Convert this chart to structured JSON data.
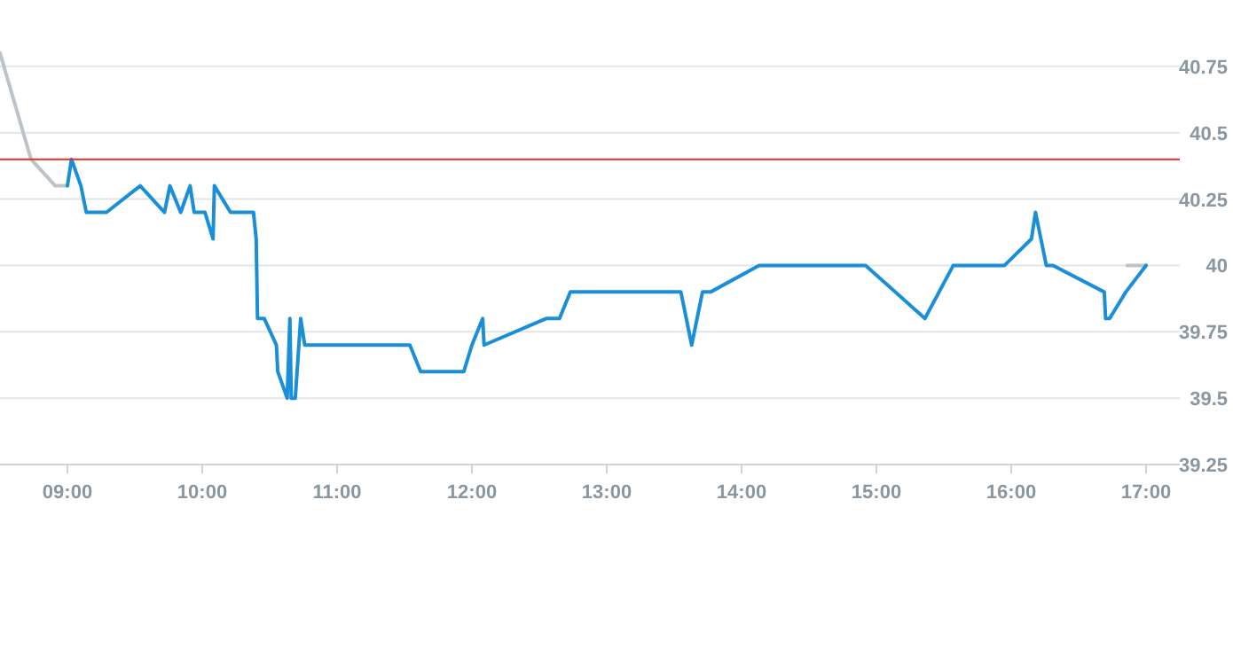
{
  "chart_data": {
    "type": "line",
    "xlim": [
      8.5,
      17.25
    ],
    "ylim": [
      39.25,
      41
    ],
    "xticks": [
      {
        "value": 9,
        "label": "09:00"
      },
      {
        "value": 10,
        "label": "10:00"
      },
      {
        "value": 11,
        "label": "11:00"
      },
      {
        "value": 12,
        "label": "12:00"
      },
      {
        "value": 13,
        "label": "13:00"
      },
      {
        "value": 14,
        "label": "14:00"
      },
      {
        "value": 15,
        "label": "15:00"
      },
      {
        "value": 16,
        "label": "16:00"
      },
      {
        "value": 17,
        "label": "17:00"
      }
    ],
    "yticks": [
      39.25,
      39.5,
      39.75,
      40,
      40.25,
      40.5,
      40.75
    ],
    "grid": "y",
    "marker": "none",
    "line_style": "solid",
    "ref_lines": [
      {
        "axis": "y",
        "value": 40.4,
        "color": "#d9342b"
      }
    ],
    "series": [
      {
        "color": "#bcc3c9",
        "x": [
          8.5,
          8.73,
          8.91,
          9.0
        ],
        "values": [
          40.8,
          40.4,
          40.3,
          40.3
        ]
      },
      {
        "color": "#bcc3c9",
        "x": [
          16.86,
          17.0
        ],
        "values": [
          40.0,
          40.0
        ]
      },
      {
        "color": "#1a8fd8",
        "x": [
          9.0,
          9.03,
          9.1,
          9.14,
          9.29,
          9.54,
          9.72,
          9.76,
          9.84,
          9.91,
          9.94,
          10.02,
          10.08,
          10.09,
          10.21,
          10.38,
          10.4,
          10.41,
          10.46,
          10.55,
          10.56,
          10.63,
          10.65,
          10.66,
          10.69,
          10.73,
          10.76,
          11.54,
          11.62,
          11.94,
          12.0,
          12.08,
          12.09,
          12.55,
          12.65,
          12.73,
          13.55,
          13.63,
          13.71,
          13.77,
          14.13,
          14.92,
          15.36,
          15.57,
          15.95,
          16.15,
          16.18,
          16.26,
          16.31,
          16.69,
          16.7,
          16.73,
          16.85,
          17.0
        ],
        "values": [
          40.3,
          40.4,
          40.3,
          40.2,
          40.2,
          40.3,
          40.2,
          40.3,
          40.2,
          40.3,
          40.2,
          40.2,
          40.1,
          40.3,
          40.2,
          40.2,
          40.1,
          39.8,
          39.8,
          39.7,
          39.6,
          39.5,
          39.8,
          39.5,
          39.5,
          39.8,
          39.7,
          39.7,
          39.6,
          39.6,
          39.7,
          39.8,
          39.7,
          39.8,
          39.8,
          39.9,
          39.9,
          39.7,
          39.9,
          39.9,
          40.0,
          40.0,
          39.8,
          40.0,
          40.0,
          40.1,
          40.2,
          40.0,
          40.0,
          39.9,
          39.8,
          39.8,
          39.9,
          40.0
        ]
      }
    ]
  }
}
